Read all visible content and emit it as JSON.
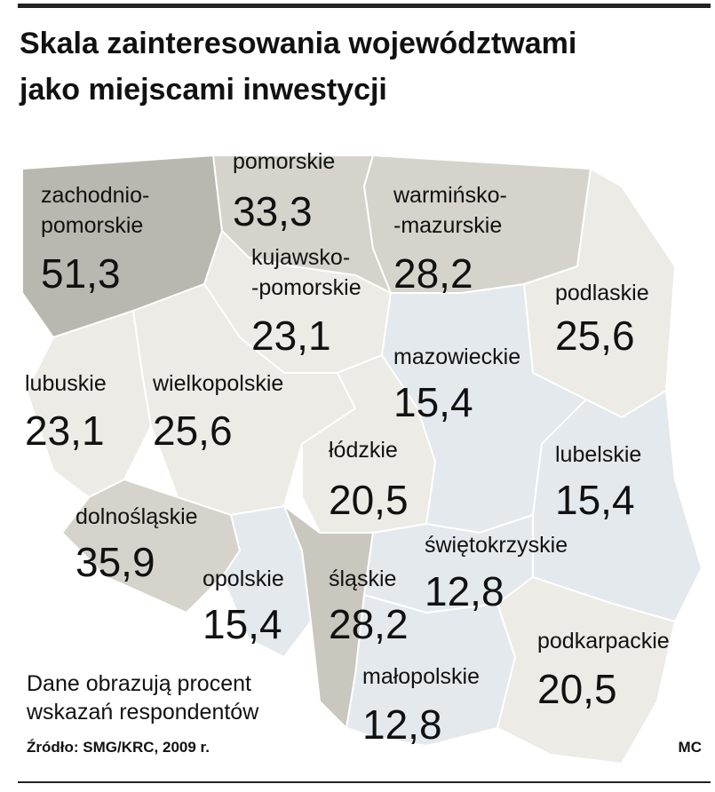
{
  "map": {
    "title": [
      "Skala zainteresowania województwami",
      "jako miejscami inwestycji"
    ],
    "regions": [
      {
        "name": [
          "zachodnio-",
          "pomorskie"
        ],
        "value": 51.3,
        "value_label": "51,3",
        "color": "#b8b8b0"
      },
      {
        "name": [
          "pomorskie"
        ],
        "value": 33.3,
        "value_label": "33,3",
        "color": "#d5d3cb"
      },
      {
        "name": [
          "warmińsko-",
          "-mazurskie"
        ],
        "value": 28.2,
        "value_label": "28,2",
        "color": "#d5d3cb"
      },
      {
        "name": [
          "podlaskie"
        ],
        "value": 25.6,
        "value_label": "25,6",
        "color": "#ecebe5"
      },
      {
        "name": [
          "kujawsko-",
          "-pomorskie"
        ],
        "value": 23.1,
        "value_label": "23,1",
        "color": "#ecebe5"
      },
      {
        "name": [
          "lubuskie"
        ],
        "value": 23.1,
        "value_label": "23,1",
        "color": "#ecebe5"
      },
      {
        "name": [
          "wielkopolskie"
        ],
        "value": 25.6,
        "value_label": "25,6",
        "color": "#ecebe5"
      },
      {
        "name": [
          "mazowieckie"
        ],
        "value": 15.4,
        "value_label": "15,4",
        "color": "#e4e9ed"
      },
      {
        "name": [
          "łódzkie"
        ],
        "value": 20.5,
        "value_label": "20,5",
        "color": "#ecebe5"
      },
      {
        "name": [
          "lubelskie"
        ],
        "value": 15.4,
        "value_label": "15,4",
        "color": "#e4e9ed"
      },
      {
        "name": [
          "dolnośląskie"
        ],
        "value": 35.9,
        "value_label": "35,9",
        "color": "#d5d3cb"
      },
      {
        "name": [
          "opolskie"
        ],
        "value": 15.4,
        "value_label": "15,4",
        "color": "#e4e9ed"
      },
      {
        "name": [
          "śląskie"
        ],
        "value": 28.2,
        "value_label": "28,2",
        "color": "#c9c7be"
      },
      {
        "name": [
          "świętokrzyskie"
        ],
        "value": 12.8,
        "value_label": "12,8",
        "color": "#e4e9ed"
      },
      {
        "name": [
          "małopolskie"
        ],
        "value": 12.8,
        "value_label": "12,8",
        "color": "#e4e9ed"
      },
      {
        "name": [
          "podkarpackie"
        ],
        "value": 20.5,
        "value_label": "20,5",
        "color": "#ecebe5"
      }
    ],
    "note": [
      "Dane obrazują procent",
      "wskazań respondentów"
    ],
    "source": "Źródło: SMG/KRC, 2009 r.",
    "author": "MC"
  }
}
